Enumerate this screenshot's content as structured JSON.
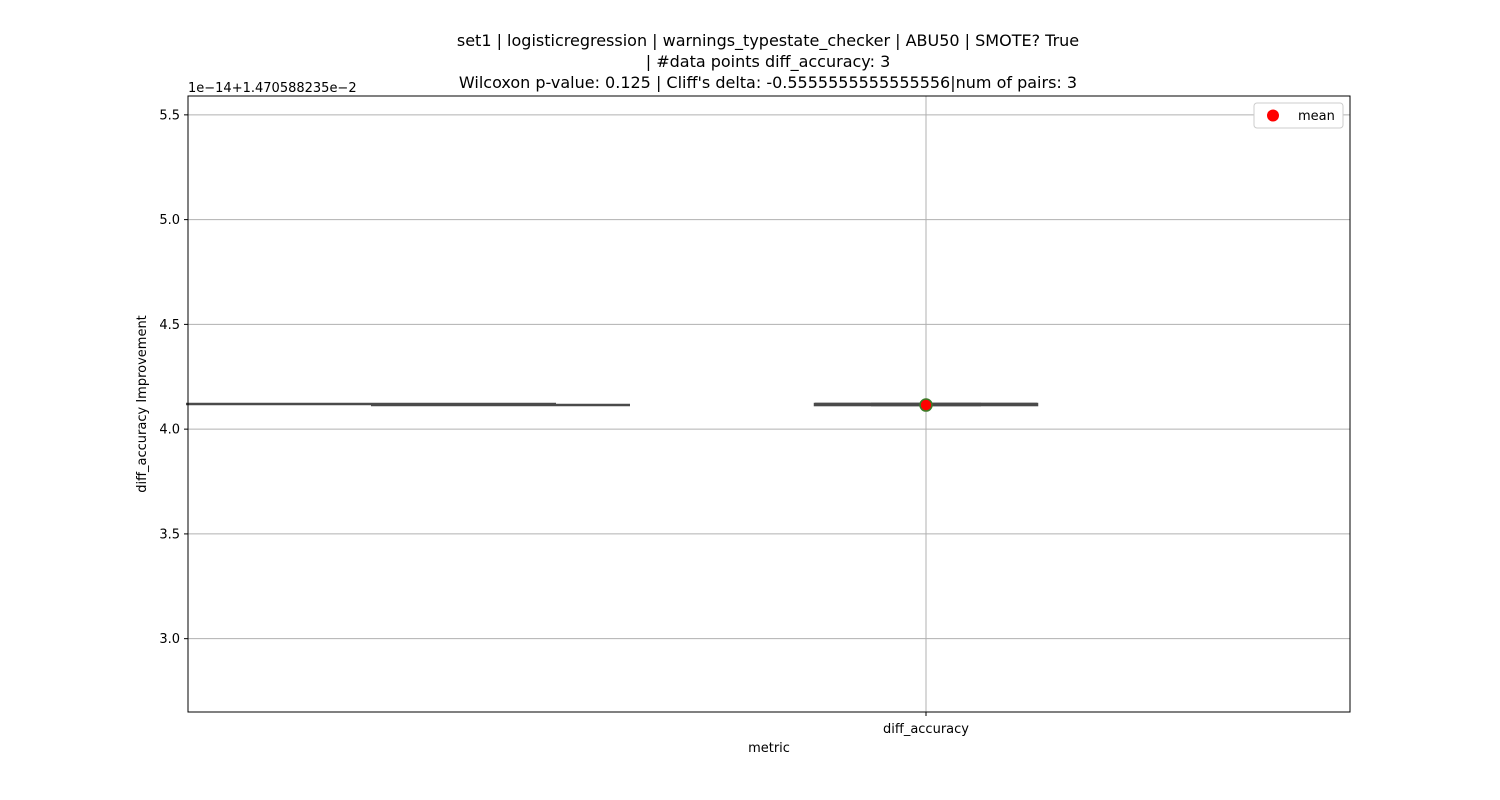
{
  "chart_data": {
    "type": "box",
    "title": [
      "set1 | logisticregression | warnings_typestate_checker | ABU50 | SMOTE? True",
      "| #data points diff_accuracy: 3",
      "Wilcoxon p-value: 0.125 | Cliff's delta: -0.5555555555555556|num of pairs: 3"
    ],
    "xlabel": "metric",
    "ylabel": "diff_accuracy Improvement",
    "y_offset_label": "1e−14+1.470588235e−2",
    "ylim": [
      2.65,
      5.59
    ],
    "yticks": [
      3.0,
      3.5,
      4.0,
      4.5,
      5.0,
      5.5
    ],
    "ytick_labels": [
      "3.0",
      "3.5",
      "4.0",
      "4.5",
      "5.0",
      "5.5"
    ],
    "categories": [
      "diff_accuracy"
    ],
    "grid": true,
    "legend": {
      "position": "top-right",
      "entries": [
        {
          "label": "mean",
          "color": "#ff0000",
          "marker": "circle"
        }
      ]
    },
    "series": [
      {
        "category": "diff_accuracy",
        "whisker_low": 4.115,
        "q1": 4.115,
        "median": 4.12,
        "q3": 4.12,
        "whisker_high": 4.12,
        "mean": 4.115
      }
    ],
    "stray_lines": [
      {
        "x0": -1.0,
        "x1": -0.5,
        "y": 4.12
      },
      {
        "x0": -0.75,
        "x1": -0.4,
        "y": 4.115
      }
    ],
    "colors": {
      "box": "#4a4a4a",
      "mean": "#ff0000",
      "mean_edge": "#3a7d28",
      "grid": "#b0b0b0"
    }
  }
}
